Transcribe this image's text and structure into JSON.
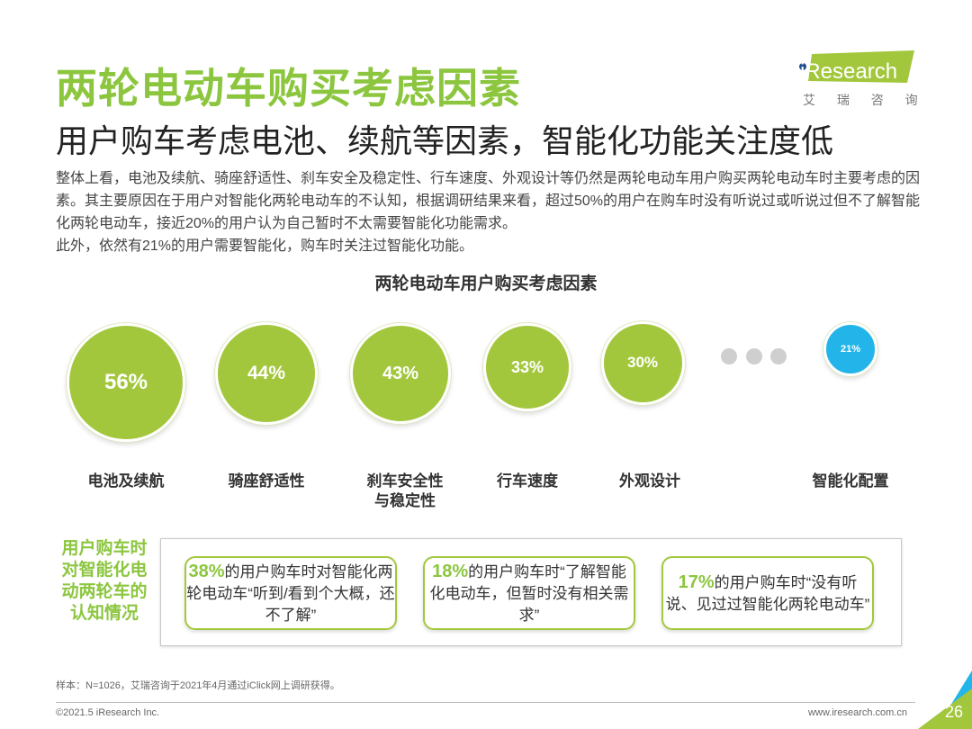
{
  "header": {
    "title": "两轮电动车购买考虑因素",
    "subtitle": "用户购车考虑电池、续航等因素，智能化功能关注度低",
    "logo": {
      "brand": "iResearch",
      "cn": "艾 瑞 咨 询"
    }
  },
  "body_text": [
    "整体上看，电池及续航、骑座舒适性、刹车安全及稳定性、行车速度、外观设计等仍然是两轮电动车用户购买两轮电动车时主要考虑的因素。其主要原因在于用户对智能化两轮电动车的不认知，根据调研结果来看，超过50%的用户在购车时没有听说过或听说过但不了解智能化两轮电动车，接近20%的用户认为自己暂时不太需要智能化功能需求。",
    "此外，依然有21%的用户需要智能化，购车时关注过智能化功能。"
  ],
  "chart_data": {
    "type": "bubble",
    "title": "两轮电动车用户购买考虑因素",
    "categories": [
      "电池及续航",
      "骑座舒适性",
      "刹车安全性\n与稳定性",
      "行车速度",
      "外观设计",
      "智能化配置"
    ],
    "values": [
      56,
      44,
      43,
      33,
      30,
      21
    ],
    "labels": [
      "56%",
      "44%",
      "43%",
      "33%",
      "30%",
      "21%"
    ],
    "unit": "%",
    "colors": {
      "main": "#a3c73c",
      "highlight": "#23b5ea",
      "ellipsis": "#cfcfcf"
    },
    "highlight_index": 5
  },
  "awareness": {
    "label": "用户购车时对智能化电动两轮车的认知情况",
    "cards": [
      {
        "pct": "38%",
        "text": "的用户购车时对智能化两轮电动车“听到/看到个大概，还不了解”"
      },
      {
        "pct": "18%",
        "text": "的用户购车时“了解智能化电动车，但暂时没有相关需求”"
      },
      {
        "pct": "17%",
        "text": "的用户购车时“没有听说、见过过智能化两轮电动车”"
      }
    ]
  },
  "footer": {
    "note": "样本：N=1026，艾瑞咨询于2021年4月通过iClick网上调研获得。",
    "copyright": "©2021.5 iResearch Inc.",
    "website": "www.iresearch.com.cn",
    "page": "26"
  }
}
